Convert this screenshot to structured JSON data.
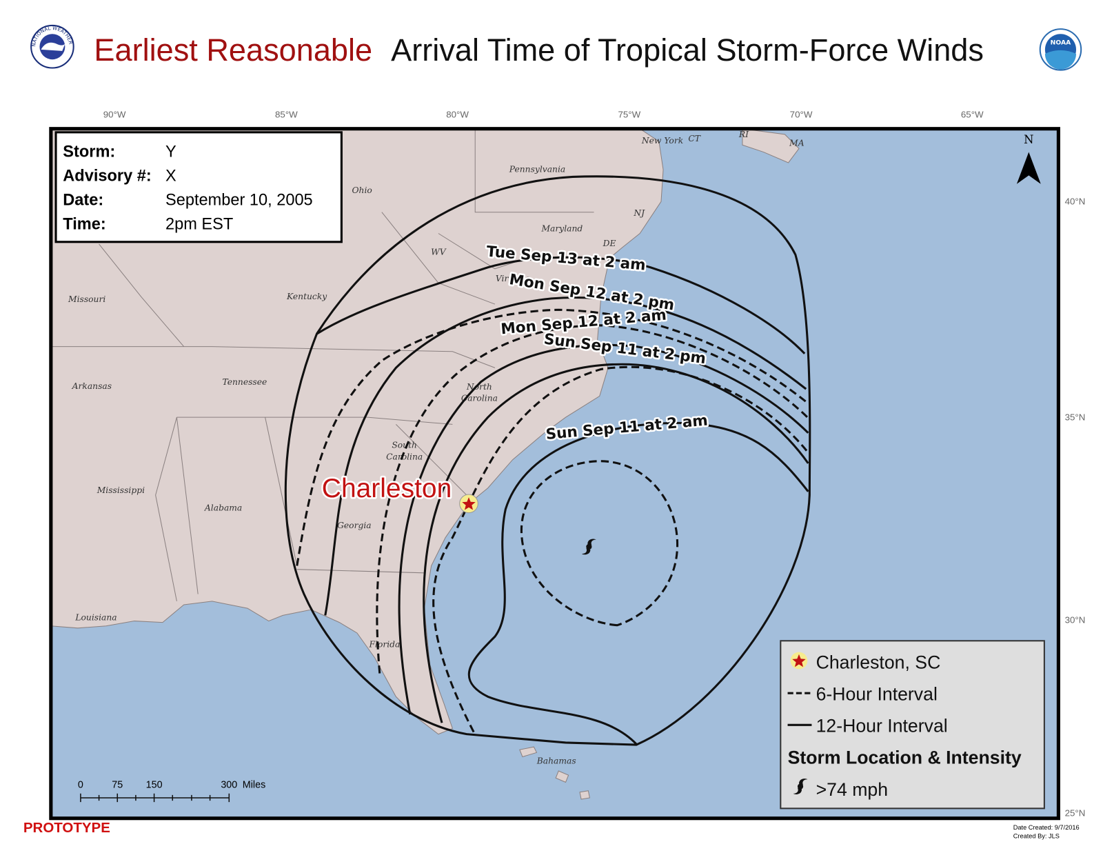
{
  "header": {
    "title_highlight": "Earliest Reasonable",
    "title_rest": "Arrival Time of Tropical Storm-Force Winds",
    "nws_logo": "NATIONAL WEATHER SERVICE",
    "noaa_logo": "NOAA"
  },
  "graticule": {
    "longitudes": [
      "90°W",
      "85°W",
      "80°W",
      "75°W",
      "70°W",
      "65°W"
    ],
    "latitudes": [
      "40°N",
      "35°N",
      "30°N",
      "25°N"
    ]
  },
  "info_box": {
    "rows": [
      {
        "label": "Storm:",
        "value": "Y"
      },
      {
        "label": "Advisory #:",
        "value": "X"
      },
      {
        "label": "Date:",
        "value": "September 10, 2005"
      },
      {
        "label": "Time:",
        "value": "2pm EST"
      }
    ]
  },
  "north_arrow": "N",
  "places": [
    "Pennsylvania",
    "Ohio",
    "New York",
    "CT",
    "RI",
    "MA",
    "NJ",
    "Maryland",
    "DE",
    "WV",
    "Virginia",
    "Missouri",
    "Kentucky",
    "Tennessee",
    "Arkansas",
    "North",
    "Carolina",
    "South",
    "Carolina",
    "Mississippi",
    "Alabama",
    "Georgia",
    "Louisiana",
    "Florida",
    "Bahamas"
  ],
  "city_label": "Charleston",
  "contour_labels": [
    "Tue Sep 13 at 2 am",
    "Mon Sep 12 at 2 pm",
    "Mon Sep 12 at 2 am",
    "Sun Sep 11 at 2 pm",
    "Sun Sep 11 at 2 am"
  ],
  "legend": {
    "items": [
      "Charleston, SC",
      "6-Hour Interval",
      "12-Hour Interval"
    ],
    "heading": "Storm Location & Intensity",
    "intensity": ">74 mph"
  },
  "scale_bar": {
    "ticks": [
      "0",
      "75",
      "150",
      "300"
    ],
    "unit": "Miles"
  },
  "footer": {
    "watermark": "PROTOTYPE",
    "date_created": "Date Created: 9/7/2016",
    "created_by": "Created By: JLS"
  }
}
